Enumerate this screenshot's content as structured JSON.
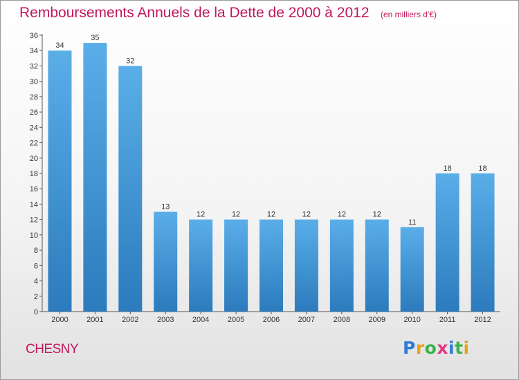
{
  "chart_data": {
    "type": "bar",
    "title": "Remboursements Annuels de la Dette de 2000 à 2012",
    "subtitle": "(en milliers d'€)",
    "xlabel": "",
    "ylabel": "",
    "categories": [
      "2000",
      "2001",
      "2002",
      "2003",
      "2004",
      "2005",
      "2006",
      "2007",
      "2008",
      "2009",
      "2010",
      "2011",
      "2012"
    ],
    "values": [
      34,
      35,
      32,
      13,
      12,
      12,
      12,
      12,
      12,
      12,
      11,
      18,
      18
    ],
    "ylim": [
      0,
      36
    ],
    "yticks": [
      0,
      2,
      4,
      6,
      8,
      10,
      12,
      14,
      16,
      18,
      20,
      22,
      24,
      26,
      28,
      30,
      32,
      34,
      36
    ],
    "grid": false,
    "legend": "none"
  },
  "commune": "CHESNY",
  "logo": {
    "text": "Proxiti",
    "letter_colors": [
      "#2e7bd6",
      "#e8a21c",
      "#3bb34a",
      "#e23b7f",
      "#2e7bd6",
      "#3bb34a",
      "#e8a21c"
    ]
  },
  "colors": {
    "bar_light": "#5aaee8",
    "bar_dark": "#2c7bbd",
    "title": "#c2185b",
    "axis": "#555555"
  }
}
